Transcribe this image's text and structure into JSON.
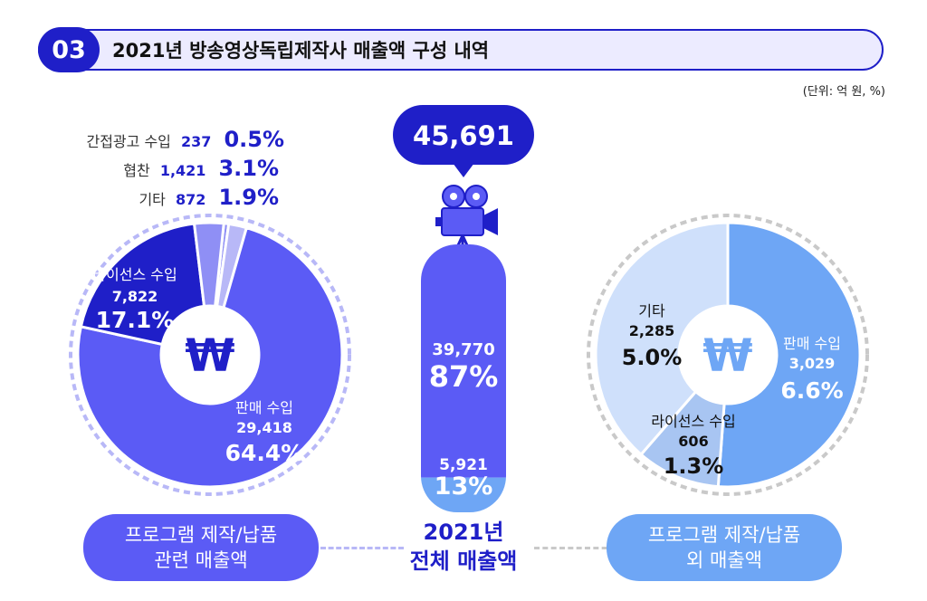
{
  "header": {
    "badge": "03",
    "title": "2021년 방송영상독립제작사 매출액 구성 내역",
    "unit": "(단위: 억 원, %)"
  },
  "total": {
    "value": "45,691",
    "line1": "2021년",
    "line2": "전체 매출액",
    "related_value": "39,770",
    "related_pct": "87%",
    "other_value": "5,921",
    "other_pct": "13%"
  },
  "left_small": [
    {
      "label": "간접광고 수입",
      "value": "237",
      "pct": "0.5%"
    },
    {
      "label": "협찬",
      "value": "1,421",
      "pct": "3.1%"
    },
    {
      "label": "기타",
      "value": "872",
      "pct": "1.9%"
    }
  ],
  "left_labels": {
    "license": {
      "label": "라이선스 수입",
      "value": "7,822",
      "pct": "17.1%"
    },
    "sales": {
      "label": "판매 수입",
      "value": "29,418",
      "pct": "64.4%"
    }
  },
  "right_labels": {
    "other": {
      "label": "기타",
      "value": "2,285",
      "pct": "5.0%"
    },
    "license": {
      "label": "라이선스 수입",
      "value": "606",
      "pct": "1.3%"
    },
    "sales": {
      "label": "판매 수입",
      "value": "3,029",
      "pct": "6.6%"
    }
  },
  "pills": {
    "left_line1": "프로그램 제작/납품",
    "left_line2": "관련 매출액",
    "right_line1": "프로그램 제작/납품",
    "right_line2": "외 매출액"
  },
  "won_symbol": "₩",
  "colors": {
    "dark_blue": "#1f1fc8",
    "mid_blue": "#5b5bf5",
    "light_violet": "#8f8ff5",
    "pale_violet": "#b8b8f7",
    "sky_blue": "#6ea6f5",
    "pale_blue": "#cfe0fb",
    "mid_sky": "#a8c5f2"
  },
  "chart_data": [
    {
      "type": "pie",
      "title": "프로그램 제작/납품 관련 매출액",
      "categories": [
        "판매 수입",
        "라이선스 수입",
        "간접광고 수입",
        "협찬",
        "기타"
      ],
      "values": [
        29418,
        7822,
        237,
        1421,
        872
      ],
      "percent": [
        64.4,
        17.1,
        0.5,
        3.1,
        1.9
      ]
    },
    {
      "type": "pie",
      "title": "프로그램 제작/납품 외 매출액",
      "categories": [
        "판매 수입",
        "라이선스 수입",
        "기타"
      ],
      "values": [
        3029,
        606,
        2285
      ],
      "percent": [
        6.6,
        1.3,
        5.0
      ]
    },
    {
      "type": "bar",
      "title": "2021년 전체 매출액",
      "categories": [
        "프로그램 제작/납품 관련 매출액",
        "프로그램 제작/납품 외 매출액"
      ],
      "values": [
        39770,
        5921
      ],
      "percent": [
        87,
        13
      ],
      "total": 45691
    }
  ]
}
